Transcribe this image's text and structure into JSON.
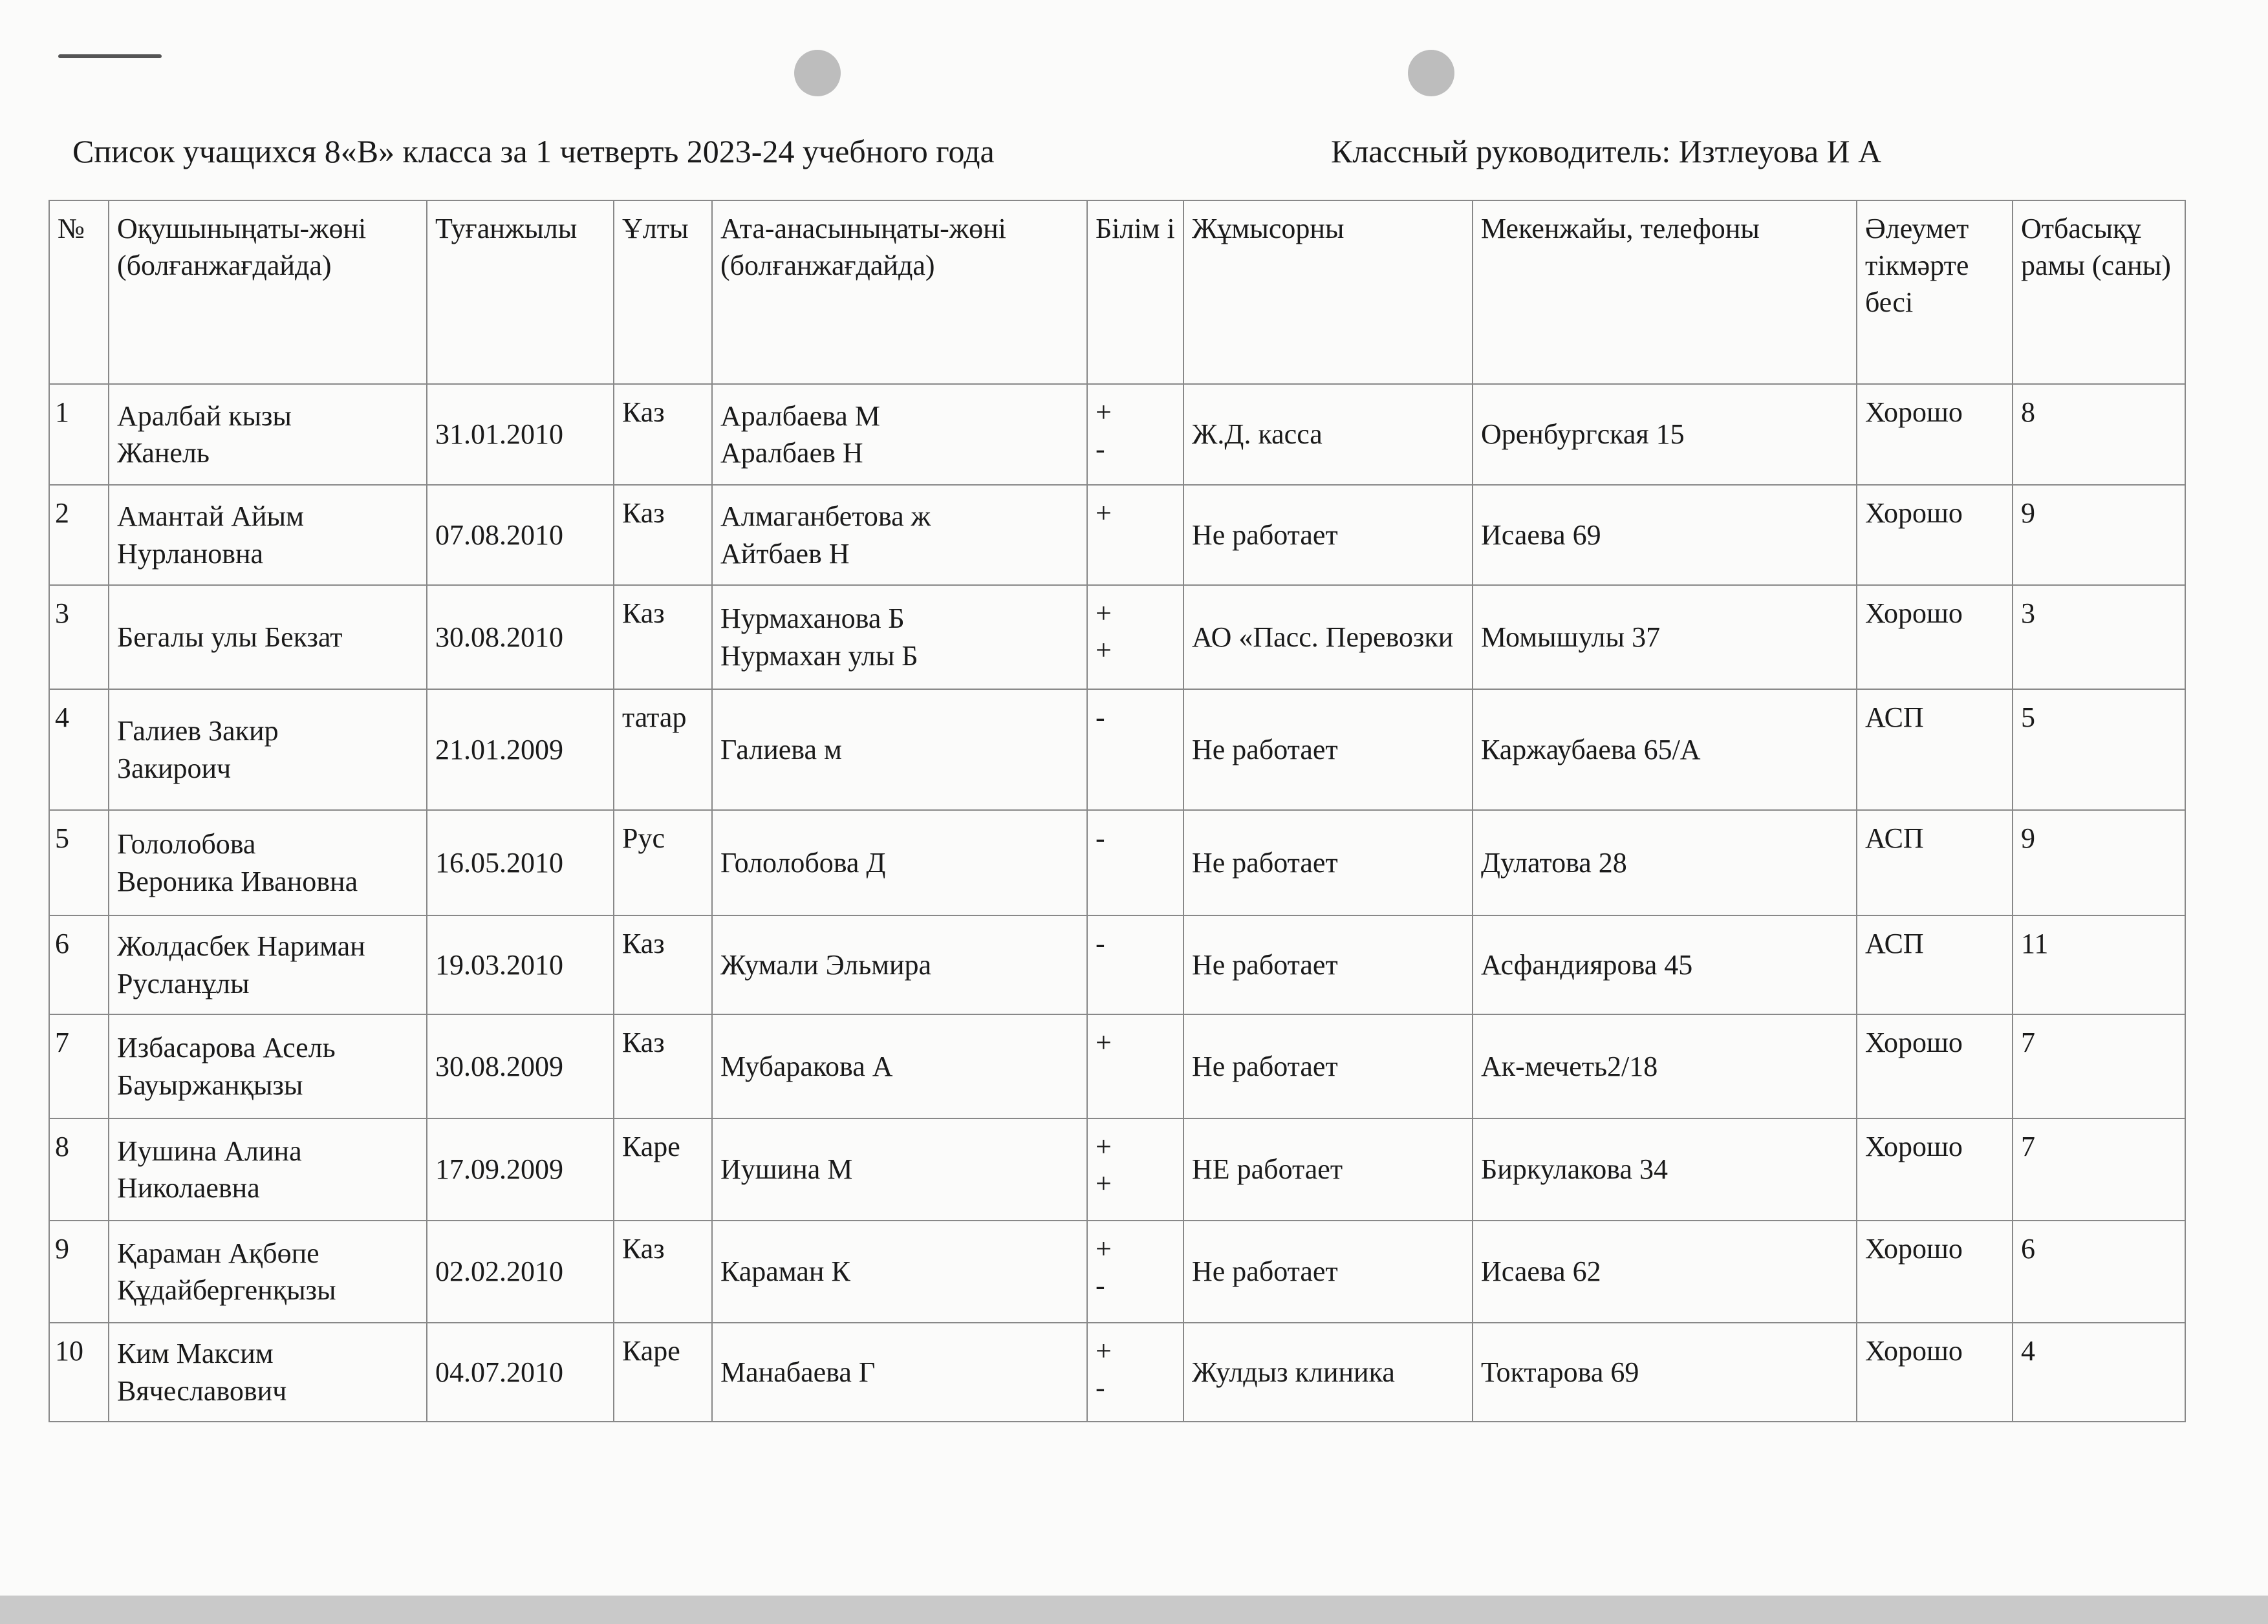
{
  "title": "Список учащихся 8«В» класса за 1 четверть 2023-24 учебного года",
  "teacher": "Классный руководитель: Изтлеуова И А",
  "headers": {
    "num": "№",
    "name": "Оқушыныңаты-жөні (болғанжағдайда)",
    "birth": "Туғанжылы",
    "nation": "Ұлты",
    "parents": "Ата-анасыныңаты-жөні (болғанжағдайда)",
    "education": "Білім і",
    "work": "Жұмысорны",
    "address": "Мекенжайы, телефоны",
    "social": "Әлеумет тікмәрте бесі",
    "family": "Отбасықұ рамы (саны)"
  },
  "rows": [
    {
      "num": "1",
      "name": [
        "Аралбай кызы",
        "Жанель"
      ],
      "birth": "31.01.2010",
      "nation": "Каз",
      "parents": [
        "Аралбаева М",
        "Аралбаев Н"
      ],
      "education": [
        "+",
        "-"
      ],
      "work": "Ж.Д. касса",
      "address": "Оренбургская 15",
      "social": "Хорошо",
      "family": "8"
    },
    {
      "num": "2",
      "name": [
        "Амантай Айым",
        "Нурлановна"
      ],
      "birth": "07.08.2010",
      "nation": "Каз",
      "parents": [
        "Алмаганбетова ж",
        "Айтбаев Н"
      ],
      "education": [
        "+"
      ],
      "work": "Не работает",
      "address": "Исаева 69",
      "social": "Хорошо",
      "family": "9"
    },
    {
      "num": "3",
      "name": [
        "Бегалы улы Бекзат"
      ],
      "birth": "30.08.2010",
      "nation": "Каз",
      "parents": [
        "Нурмаханова Б",
        "Нурмахан улы Б"
      ],
      "education": [
        "+",
        "+"
      ],
      "work": "АО «Пасс. Перевозки",
      "address": "Момышулы 37",
      "social": "Хорошо",
      "family": "3"
    },
    {
      "num": "4",
      "name": [
        "Галиев   Закир",
        "Закирoич"
      ],
      "birth": "21.01.2009",
      "nation": "татар",
      "parents": [
        "Галиева м"
      ],
      "education": [
        "-"
      ],
      "work": "Не работает",
      "address": "Каржаубаева 65/А",
      "social": "АСП",
      "family": "5"
    },
    {
      "num": "5",
      "name": [
        "Гололобова",
        "Вероника Ивановна"
      ],
      "birth": "16.05.2010",
      "nation": "Рус",
      "parents": [
        "Гололобова Д"
      ],
      "education": [
        "-"
      ],
      "work": "Не работает",
      "address": "Дулатова 28",
      "social": "АСП",
      "family": "9"
    },
    {
      "num": "6",
      "name": [
        "Жолдасбек Нариман",
        "Русланұлы"
      ],
      "birth": "19.03.2010",
      "nation": "Каз",
      "parents": [
        "Жумали Эльмира"
      ],
      "education": [
        "-"
      ],
      "work": "Не работает",
      "address": "Асфандиярова 45",
      "social": "АСП",
      "family": "11"
    },
    {
      "num": "7",
      "name": [
        "Избасарова Асель",
        "Бауыржанқызы"
      ],
      "birth": "30.08.2009",
      "nation": "Каз",
      "parents": [
        "Мубаракова А"
      ],
      "education": [
        "+"
      ],
      "work": "Не работает",
      "address": "Ак-мечеть2/18",
      "social": "Хорошо",
      "family": "7"
    },
    {
      "num": "8",
      "name": [
        "Иушина  Алина",
        "Николаевна"
      ],
      "birth": "17.09.2009",
      "nation": "Каре",
      "parents": [
        "Иушина М"
      ],
      "education": [
        "+",
        "+"
      ],
      "work": "НЕ работает",
      "address": "Биркулакова 34",
      "social": "Хорошо",
      "family": "7"
    },
    {
      "num": "9",
      "name": [
        "Қараман  Ақбөпе",
        "Құдайбергенқызы"
      ],
      "birth": "02.02.2010",
      "nation": "Каз",
      "parents": [
        "Караман К"
      ],
      "education": [
        "+",
        "-"
      ],
      "work": "Не работает",
      "address": "Исаева 62",
      "social": "Хорошо",
      "family": "6"
    },
    {
      "num": "10",
      "name": [
        "Ким Максим",
        "Вячеславович"
      ],
      "birth": "04.07.2010",
      "nation": "Каре",
      "parents": [
        "Манабаева Г"
      ],
      "education": [
        "+",
        "-"
      ],
      "work": "Жулдыз клиника",
      "address": "Токтарова 69",
      "social": "Хорошо",
      "family": "4"
    }
  ]
}
